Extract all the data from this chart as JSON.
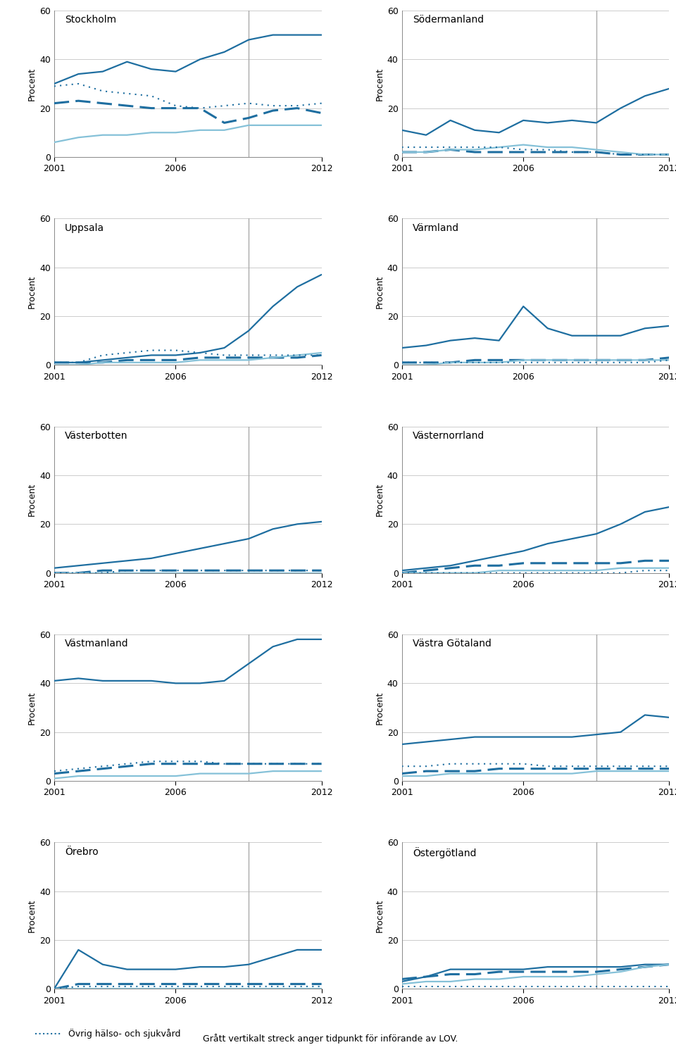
{
  "years": [
    2001,
    2002,
    2003,
    2004,
    2005,
    2006,
    2007,
    2008,
    2009,
    2010,
    2011,
    2012
  ],
  "lov_year": 2009,
  "ylim": [
    0,
    60
  ],
  "yticks": [
    0,
    20,
    40,
    60
  ],
  "xticks": [
    2001,
    2006,
    2012
  ],
  "colors": {
    "line1": "#1e6ea0",
    "line2": "#1e6ea0",
    "line3": "#85c1d8",
    "line4": "#1e6ea0",
    "vline": "#aaaaaa"
  },
  "subplots": [
    {
      "title": "Stockholm",
      "line1": [
        30,
        34,
        35,
        39,
        36,
        35,
        40,
        43,
        48,
        50,
        50,
        50
      ],
      "line2": [
        22,
        23,
        22,
        21,
        20,
        20,
        20,
        14,
        16,
        19,
        20,
        18
      ],
      "line3": [
        6,
        8,
        9,
        9,
        10,
        10,
        11,
        11,
        13,
        13,
        13,
        13
      ],
      "line4": [
        29,
        30,
        27,
        26,
        25,
        21,
        20,
        21,
        22,
        21,
        21,
        22
      ]
    },
    {
      "title": "Södermanland",
      "line1": [
        11,
        9,
        15,
        11,
        10,
        15,
        14,
        15,
        14,
        20,
        25,
        28
      ],
      "line2": [
        2,
        2,
        3,
        2,
        2,
        2,
        2,
        2,
        2,
        1,
        1,
        1
      ],
      "line3": [
        2,
        2,
        3,
        3,
        4,
        5,
        4,
        4,
        3,
        2,
        1,
        1
      ],
      "line4": [
        4,
        4,
        4,
        4,
        4,
        3,
        3,
        2,
        2,
        1,
        1,
        1
      ]
    },
    {
      "title": "Uppsala",
      "line1": [
        1,
        1,
        2,
        3,
        4,
        4,
        5,
        7,
        14,
        24,
        32,
        37
      ],
      "line2": [
        1,
        1,
        1,
        2,
        2,
        2,
        3,
        3,
        3,
        3,
        3,
        4
      ],
      "line3": [
        0,
        0,
        1,
        1,
        1,
        1,
        2,
        2,
        2,
        3,
        4,
        5
      ],
      "line4": [
        1,
        1,
        4,
        5,
        6,
        6,
        5,
        4,
        4,
        4,
        4,
        4
      ]
    },
    {
      "title": "Värmland",
      "line1": [
        7,
        8,
        10,
        11,
        10,
        24,
        15,
        12,
        12,
        12,
        15,
        16
      ],
      "line2": [
        1,
        1,
        1,
        2,
        2,
        2,
        2,
        2,
        2,
        2,
        2,
        3
      ],
      "line3": [
        0,
        0,
        1,
        1,
        1,
        2,
        2,
        2,
        2,
        2,
        2,
        2
      ],
      "line4": [
        1,
        1,
        1,
        1,
        1,
        1,
        1,
        1,
        1,
        1,
        1,
        2
      ]
    },
    {
      "title": "Västerbotten",
      "line1": [
        2,
        3,
        4,
        5,
        6,
        8,
        10,
        12,
        14,
        18,
        20,
        21
      ],
      "line2": [
        0,
        0,
        1,
        1,
        1,
        1,
        1,
        1,
        1,
        1,
        1,
        1
      ],
      "line3": [
        0,
        0,
        0,
        0,
        0,
        0,
        0,
        0,
        0,
        0,
        0,
        0
      ],
      "line4": [
        0,
        0,
        0,
        1,
        1,
        1,
        1,
        1,
        1,
        1,
        1,
        1
      ]
    },
    {
      "title": "Västernorrland",
      "line1": [
        1,
        2,
        3,
        5,
        7,
        9,
        12,
        14,
        16,
        20,
        25,
        27
      ],
      "line2": [
        0,
        1,
        2,
        3,
        3,
        4,
        4,
        4,
        4,
        4,
        5,
        5
      ],
      "line3": [
        0,
        0,
        0,
        0,
        1,
        1,
        1,
        1,
        1,
        2,
        2,
        2
      ],
      "line4": [
        0,
        0,
        0,
        0,
        0,
        0,
        0,
        0,
        0,
        0,
        1,
        1
      ]
    },
    {
      "title": "Västmanland",
      "line1": [
        41,
        42,
        41,
        41,
        41,
        40,
        40,
        41,
        48,
        55,
        58,
        58
      ],
      "line2": [
        3,
        4,
        5,
        6,
        7,
        7,
        7,
        7,
        7,
        7,
        7,
        7
      ],
      "line3": [
        1,
        2,
        2,
        2,
        2,
        2,
        3,
        3,
        3,
        4,
        4,
        4
      ],
      "line4": [
        4,
        5,
        6,
        7,
        8,
        8,
        8,
        7,
        7,
        7,
        7,
        7
      ]
    },
    {
      "title": "Västra Götaland",
      "line1": [
        15,
        16,
        17,
        18,
        18,
        18,
        18,
        18,
        19,
        20,
        27,
        26
      ],
      "line2": [
        3,
        4,
        4,
        4,
        5,
        5,
        5,
        5,
        5,
        5,
        5,
        5
      ],
      "line3": [
        2,
        2,
        3,
        3,
        3,
        3,
        3,
        3,
        4,
        4,
        4,
        4
      ],
      "line4": [
        6,
        6,
        7,
        7,
        7,
        7,
        6,
        6,
        6,
        6,
        6,
        6
      ]
    },
    {
      "title": "Örebro",
      "line1": [
        0,
        16,
        10,
        8,
        8,
        8,
        9,
        9,
        10,
        13,
        16,
        16
      ],
      "line2": [
        0,
        2,
        2,
        2,
        2,
        2,
        2,
        2,
        2,
        2,
        2,
        2
      ],
      "line3": [
        0,
        0,
        0,
        0,
        0,
        0,
        0,
        0,
        0,
        0,
        0,
        0
      ],
      "line4": [
        0,
        1,
        1,
        1,
        1,
        1,
        1,
        1,
        1,
        1,
        1,
        1
      ]
    },
    {
      "title": "Östergötland",
      "line1": [
        3,
        5,
        8,
        8,
        8,
        8,
        9,
        9,
        9,
        9,
        10,
        10
      ],
      "line2": [
        4,
        5,
        6,
        6,
        7,
        7,
        7,
        7,
        7,
        8,
        9,
        10
      ],
      "line3": [
        2,
        3,
        3,
        4,
        4,
        5,
        5,
        5,
        6,
        7,
        9,
        10
      ],
      "line4": [
        1,
        1,
        1,
        1,
        1,
        1,
        1,
        1,
        1,
        1,
        1,
        1
      ]
    }
  ],
  "legend_dotted_label": "Övrig hälso- och sjukvård",
  "legend_note": "Grått vertikalt streck anger tidpunkt för införande av LOV.",
  "ylabel": "Procent"
}
